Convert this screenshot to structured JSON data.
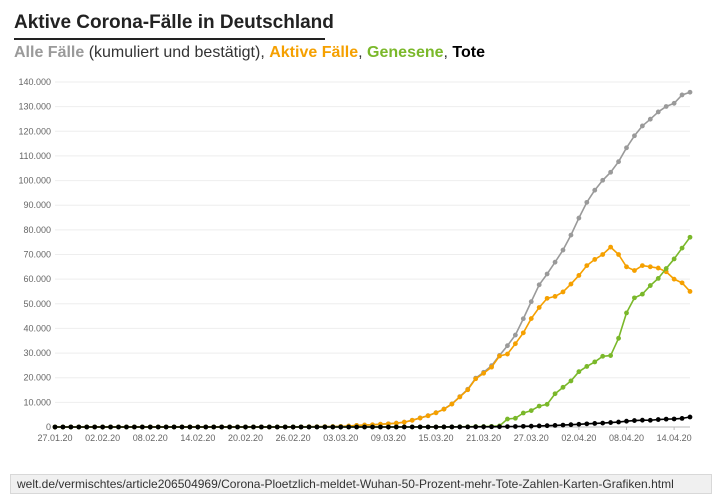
{
  "header": {
    "title": "Aktive Corona-Fälle in Deutschland",
    "subtitle": {
      "part1": "Alle Fälle",
      "part2": " (kumuliert und bestätigt), ",
      "part3": "Aktive Fälle",
      "part4": ", ",
      "part5": "Genesene",
      "part6": ", ",
      "part7": "Tote"
    }
  },
  "source": "welt.de/vermischtes/article206504969/Corona-Ploetzlich-meldet-Wuhan-50-Prozent-mehr-Tote-Zahlen-Karten-Grafiken.html",
  "colors": {
    "alle": "#9a9a9a",
    "aktive": "#f5a000",
    "genesene": "#7ab82a",
    "tote": "#000000"
  },
  "chart_data": {
    "type": "line",
    "ylim": [
      0,
      140000
    ],
    "yticks": [
      "0",
      "10.000",
      "20.000",
      "30.000",
      "40.000",
      "50.000",
      "60.000",
      "70.000",
      "80.000",
      "90.000",
      "100.000",
      "110.000",
      "120.000",
      "130.000",
      "140.000"
    ],
    "ytick_values": [
      0,
      10000,
      20000,
      30000,
      40000,
      50000,
      60000,
      70000,
      80000,
      90000,
      100000,
      110000,
      120000,
      130000,
      140000
    ],
    "x": [
      "27.01.20",
      "28.01.20",
      "29.01.20",
      "30.01.20",
      "31.01.20",
      "01.02.20",
      "02.02.20",
      "03.02.20",
      "04.02.20",
      "05.02.20",
      "06.02.20",
      "07.02.20",
      "08.02.20",
      "09.02.20",
      "10.02.20",
      "11.02.20",
      "12.02.20",
      "13.02.20",
      "14.02.20",
      "15.02.20",
      "16.02.20",
      "17.02.20",
      "18.02.20",
      "19.02.20",
      "20.02.20",
      "21.02.20",
      "22.02.20",
      "23.02.20",
      "24.02.20",
      "25.02.20",
      "26.02.20",
      "27.02.20",
      "28.02.20",
      "29.02.20",
      "01.03.20",
      "02.03.20",
      "03.03.20",
      "04.03.20",
      "05.03.20",
      "06.03.20",
      "07.03.20",
      "08.03.20",
      "09.03.20",
      "10.03.20",
      "11.03.20",
      "12.03.20",
      "13.03.20",
      "14.03.20",
      "15.03.20",
      "16.03.20",
      "17.03.20",
      "18.03.20",
      "19.03.20",
      "20.03.20",
      "21.03.20",
      "22.03.20",
      "23.03.20",
      "24.03.20",
      "25.03.20",
      "26.03.20",
      "27.03.20",
      "28.03.20",
      "29.03.20",
      "30.03.20",
      "31.03.20",
      "01.04.20",
      "02.04.20",
      "03.04.20",
      "04.04.20",
      "05.04.20",
      "06.04.20",
      "07.04.20",
      "08.04.20",
      "09.04.20",
      "10.04.20",
      "11.04.20",
      "12.04.20",
      "13.04.20",
      "14.04.20",
      "15.04.20",
      "16.04.20"
    ],
    "xticks": [
      "27.01.20",
      "02.02.20",
      "08.02.20",
      "14.02.20",
      "20.02.20",
      "26.02.20",
      "03.03.20",
      "09.03.20",
      "15.03.20",
      "21.03.20",
      "27.03.20",
      "02.04.20",
      "08.04.20",
      "14.04.20"
    ],
    "series": [
      {
        "name": "Alle Fälle",
        "color": "#9a9a9a",
        "values": [
          1,
          4,
          4,
          5,
          7,
          8,
          10,
          12,
          12,
          12,
          13,
          14,
          14,
          14,
          16,
          16,
          16,
          16,
          16,
          16,
          16,
          16,
          16,
          16,
          16,
          16,
          16,
          18,
          21,
          26,
          53,
          66,
          117,
          129,
          157,
          196,
          262,
          400,
          639,
          795,
          902,
          1139,
          1296,
          1567,
          1966,
          2745,
          3675,
          4599,
          5813,
          7272,
          9367,
          12327,
          15320,
          19848,
          22213,
          24873,
          29056,
          32986,
          37323,
          43938,
          50871,
          57695,
          62095,
          66885,
          71808,
          77872,
          84794,
          91159,
          96092,
          100123,
          103375,
          107663,
          113296,
          118181,
          122171,
          124908,
          127854,
          130072,
          131359,
          134753,
          135843
        ]
      },
      {
        "name": "Aktive Fälle",
        "color": "#f5a000",
        "values": [
          1,
          4,
          4,
          5,
          7,
          8,
          10,
          12,
          12,
          12,
          13,
          14,
          14,
          14,
          14,
          14,
          14,
          14,
          14,
          14,
          14,
          14,
          14,
          14,
          14,
          14,
          14,
          2,
          5,
          10,
          37,
          50,
          101,
          113,
          141,
          180,
          246,
          384,
          623,
          779,
          886,
          1121,
          1278,
          1545,
          1942,
          2711,
          3636,
          4554,
          5759,
          7210,
          9300,
          12190,
          15110,
          19580,
          21800,
          24300,
          28800,
          29600,
          33800,
          38200,
          44000,
          48500,
          52200,
          53000,
          54800,
          58000,
          61500,
          65500,
          68000,
          70000,
          73000,
          70000,
          65000,
          63500,
          65500,
          65000,
          64500,
          63000,
          60000,
          58500,
          55000
        ]
      },
      {
        "name": "Genesene",
        "color": "#7ab82a",
        "values": [
          0,
          0,
          0,
          0,
          0,
          0,
          0,
          0,
          0,
          0,
          0,
          0,
          0,
          0,
          2,
          2,
          2,
          2,
          2,
          2,
          2,
          2,
          2,
          2,
          2,
          2,
          2,
          16,
          16,
          16,
          16,
          16,
          16,
          16,
          16,
          16,
          16,
          16,
          16,
          16,
          16,
          16,
          16,
          18,
          18,
          25,
          28,
          35,
          44,
          46,
          53,
          105,
          113,
          180,
          180,
          266,
          422,
          3243,
          3547,
          5673,
          6658,
          8481,
          9211,
          13500,
          16100,
          18700,
          22440,
          24575,
          26400,
          28700,
          29000,
          36000,
          46300,
          52407,
          53913,
          57400,
          60300,
          64300,
          68200,
          72600,
          77000
        ]
      },
      {
        "name": "Tote",
        "color": "#000000",
        "values": [
          0,
          0,
          0,
          0,
          0,
          0,
          0,
          0,
          0,
          0,
          0,
          0,
          0,
          0,
          0,
          0,
          0,
          0,
          0,
          0,
          0,
          0,
          0,
          0,
          0,
          0,
          0,
          0,
          0,
          0,
          0,
          0,
          0,
          0,
          0,
          0,
          0,
          0,
          0,
          0,
          0,
          0,
          2,
          2,
          3,
          6,
          8,
          9,
          11,
          17,
          24,
          28,
          44,
          68,
          84,
          94,
          123,
          157,
          206,
          267,
          342,
          433,
          533,
          645,
          775,
          931,
          1107,
          1275,
          1444,
          1584,
          1810,
          2016,
          2349,
          2607,
          2767,
          2736,
          3022,
          3194,
          3254,
          3495,
          4052
        ]
      }
    ]
  }
}
